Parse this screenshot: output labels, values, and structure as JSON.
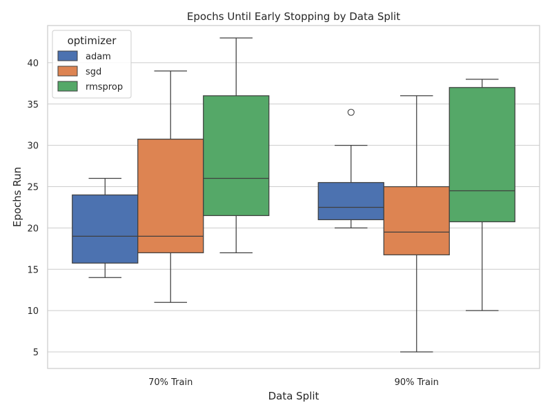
{
  "chart_data": {
    "type": "box",
    "title": "Epochs Until Early Stopping by Data Split",
    "xlabel": "Data Split",
    "ylabel": "Epochs Run",
    "categories": [
      "70% Train",
      "90% Train"
    ],
    "ylim": [
      3,
      44.5
    ],
    "yticks": [
      5,
      10,
      15,
      20,
      25,
      30,
      35,
      40
    ],
    "grid": true,
    "legend": {
      "title": "optimizer",
      "placement": "top-left"
    },
    "series": [
      {
        "name": "adam",
        "color": "#4c72b0",
        "boxes": [
          {
            "whisker_low": 14,
            "q1": 15.75,
            "median": 19,
            "q3": 24,
            "whisker_high": 26,
            "outliers": []
          },
          {
            "whisker_low": 20,
            "q1": 21,
            "median": 22.5,
            "q3": 25.5,
            "whisker_high": 30,
            "outliers": [
              34
            ]
          }
        ]
      },
      {
        "name": "sgd",
        "color": "#dd8452",
        "boxes": [
          {
            "whisker_low": 11,
            "q1": 17,
            "median": 19,
            "q3": 30.75,
            "whisker_high": 39,
            "outliers": []
          },
          {
            "whisker_low": 5,
            "q1": 16.75,
            "median": 19.5,
            "q3": 25,
            "whisker_high": 36,
            "outliers": []
          }
        ]
      },
      {
        "name": "rmsprop",
        "color": "#55a868",
        "boxes": [
          {
            "whisker_low": 17,
            "q1": 21.5,
            "median": 26,
            "q3": 36,
            "whisker_high": 43,
            "outliers": []
          },
          {
            "whisker_low": 10,
            "q1": 20.75,
            "median": 24.5,
            "q3": 37,
            "whisker_high": 38,
            "outliers": []
          }
        ]
      }
    ]
  }
}
